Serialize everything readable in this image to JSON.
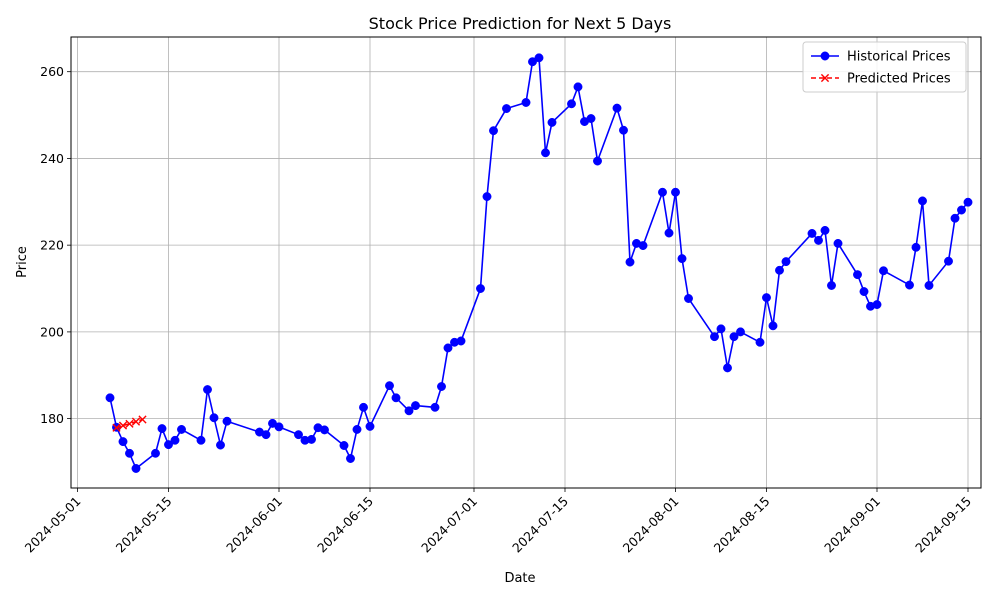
{
  "chart_data": {
    "type": "line",
    "title": "Stock Price Prediction for Next 5 Days",
    "xlabel": "Date",
    "ylabel": "Price",
    "x_ticks": [
      "2024-05-01",
      "2024-05-15",
      "2024-06-01",
      "2024-06-15",
      "2024-07-01",
      "2024-07-15",
      "2024-08-01",
      "2024-08-15",
      "2024-09-01",
      "2024-09-15"
    ],
    "y_ticks": [
      180,
      200,
      220,
      240,
      260
    ],
    "xlim": [
      "2024-04-30",
      "2024-09-17"
    ],
    "ylim": [
      164,
      268
    ],
    "grid": true,
    "legend_position": "top-right",
    "series": [
      {
        "name": "Historical Prices",
        "color": "#0000ff",
        "marker": "circle",
        "line_style": "solid",
        "points": [
          [
            "2024-05-06",
            184.8
          ],
          [
            "2024-05-07",
            178.0
          ],
          [
            "2024-05-08",
            174.7
          ],
          [
            "2024-05-09",
            172.0
          ],
          [
            "2024-05-10",
            168.5
          ],
          [
            "2024-05-13",
            172.0
          ],
          [
            "2024-05-14",
            177.7
          ],
          [
            "2024-05-15",
            174.0
          ],
          [
            "2024-05-16",
            175.0
          ],
          [
            "2024-05-17",
            177.5
          ],
          [
            "2024-05-20",
            175.0
          ],
          [
            "2024-05-21",
            186.7
          ],
          [
            "2024-05-22",
            180.2
          ],
          [
            "2024-05-23",
            173.9
          ],
          [
            "2024-05-24",
            179.4
          ],
          [
            "2024-05-29",
            176.9
          ],
          [
            "2024-05-30",
            176.3
          ],
          [
            "2024-05-31",
            178.9
          ],
          [
            "2024-06-01",
            178.1
          ],
          [
            "2024-06-04",
            176.3
          ],
          [
            "2024-06-05",
            175.0
          ],
          [
            "2024-06-06",
            175.2
          ],
          [
            "2024-06-07",
            177.9
          ],
          [
            "2024-06-08",
            177.4
          ],
          [
            "2024-06-11",
            173.8
          ],
          [
            "2024-06-12",
            170.8
          ],
          [
            "2024-06-13",
            177.5
          ],
          [
            "2024-06-14",
            182.6
          ],
          [
            "2024-06-15",
            178.2
          ],
          [
            "2024-06-18",
            187.6
          ],
          [
            "2024-06-19",
            184.8
          ],
          [
            "2024-06-21",
            181.8
          ],
          [
            "2024-06-22",
            183.0
          ],
          [
            "2024-06-25",
            182.6
          ],
          [
            "2024-06-26",
            187.4
          ],
          [
            "2024-06-27",
            196.3
          ],
          [
            "2024-06-28",
            197.6
          ],
          [
            "2024-06-29",
            197.9
          ],
          [
            "2024-07-02",
            210.0
          ],
          [
            "2024-07-03",
            231.2
          ],
          [
            "2024-07-04",
            246.4
          ],
          [
            "2024-07-06",
            251.5
          ],
          [
            "2024-07-09",
            252.9
          ],
          [
            "2024-07-10",
            262.3
          ],
          [
            "2024-07-11",
            263.2
          ],
          [
            "2024-07-12",
            241.3
          ],
          [
            "2024-07-13",
            248.3
          ],
          [
            "2024-07-16",
            252.6
          ],
          [
            "2024-07-17",
            256.5
          ],
          [
            "2024-07-18",
            248.5
          ],
          [
            "2024-07-19",
            249.2
          ],
          [
            "2024-07-20",
            239.4
          ],
          [
            "2024-07-23",
            251.6
          ],
          [
            "2024-07-24",
            246.5
          ],
          [
            "2024-07-25",
            216.1
          ],
          [
            "2024-07-26",
            220.4
          ],
          [
            "2024-07-27",
            219.9
          ],
          [
            "2024-07-30",
            232.2
          ],
          [
            "2024-07-31",
            222.8
          ],
          [
            "2024-08-01",
            232.2
          ],
          [
            "2024-08-02",
            216.9
          ],
          [
            "2024-08-03",
            207.7
          ],
          [
            "2024-08-07",
            198.9
          ],
          [
            "2024-08-08",
            200.7
          ],
          [
            "2024-08-09",
            191.7
          ],
          [
            "2024-08-10",
            198.9
          ],
          [
            "2024-08-11",
            200.0
          ],
          [
            "2024-08-14",
            197.6
          ],
          [
            "2024-08-15",
            207.9
          ],
          [
            "2024-08-16",
            201.4
          ],
          [
            "2024-08-17",
            214.2
          ],
          [
            "2024-08-18",
            216.2
          ],
          [
            "2024-08-22",
            222.7
          ],
          [
            "2024-08-23",
            221.1
          ],
          [
            "2024-08-24",
            223.4
          ],
          [
            "2024-08-25",
            210.7
          ],
          [
            "2024-08-26",
            220.4
          ],
          [
            "2024-08-29",
            213.2
          ],
          [
            "2024-08-30",
            209.3
          ],
          [
            "2024-08-31",
            205.9
          ],
          [
            "2024-09-01",
            206.3
          ],
          [
            "2024-09-02",
            214.1
          ],
          [
            "2024-09-06",
            210.8
          ],
          [
            "2024-09-07",
            219.5
          ],
          [
            "2024-09-08",
            230.2
          ],
          [
            "2024-09-09",
            210.7
          ],
          [
            "2024-09-12",
            216.3
          ],
          [
            "2024-09-13",
            226.2
          ],
          [
            "2024-09-14",
            228.1
          ],
          [
            "2024-09-15",
            229.9
          ]
        ]
      },
      {
        "name": "Predicted Prices",
        "color": "#ff0000",
        "marker": "x",
        "line_style": "dashed",
        "points": [
          [
            "2024-05-07",
            177.9
          ],
          [
            "2024-05-08",
            178.4
          ],
          [
            "2024-05-09",
            178.8
          ],
          [
            "2024-05-10",
            179.3
          ],
          [
            "2024-05-11",
            179.8
          ]
        ]
      }
    ]
  }
}
